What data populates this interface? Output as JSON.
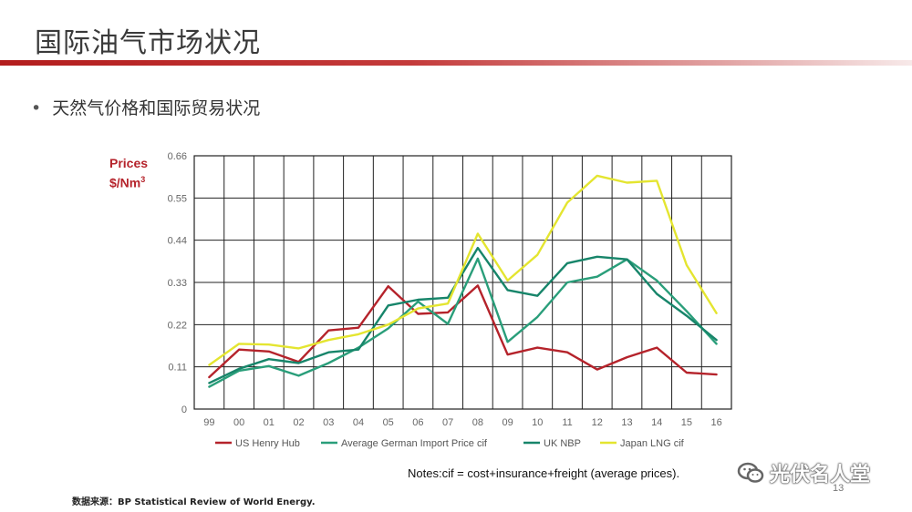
{
  "slide": {
    "title": "国际油气市场状况",
    "bullet": "天然气价格和国际贸易状况",
    "notes": "Notes:cif = cost+insurance+freight (average prices).",
    "source": "数据来源：BP Statistical Review of World Energy.",
    "page_number": "13",
    "watermark": "光伏名人堂",
    "accent_color": "#b5232b"
  },
  "chart_data": {
    "type": "line",
    "ylabel_line1": "Prices",
    "ylabel_line2": "$/Nm",
    "ylabel_sup": "3",
    "ylim": [
      0,
      0.66
    ],
    "y_ticks": [
      "0",
      "0.11",
      "0.22",
      "0.33",
      "0.44",
      "0.55",
      "0.66"
    ],
    "categories": [
      "99",
      "00",
      "01",
      "02",
      "03",
      "04",
      "05",
      "06",
      "07",
      "08",
      "09",
      "10",
      "11",
      "12",
      "13",
      "14",
      "15",
      "16"
    ],
    "grid": true,
    "legend_position": "bottom",
    "series": [
      {
        "name": "US Henry Hub",
        "color": "#b5232b",
        "values": [
          0.083,
          0.155,
          0.15,
          0.123,
          0.205,
          0.212,
          0.32,
          0.248,
          0.252,
          0.322,
          0.142,
          0.16,
          0.148,
          0.103,
          0.135,
          0.16,
          0.095,
          0.09
        ]
      },
      {
        "name": "Average German Import Price cif",
        "color": "#2a9e7a",
        "values": [
          0.058,
          0.1,
          0.112,
          0.087,
          0.12,
          0.16,
          0.21,
          0.28,
          0.222,
          0.392,
          0.175,
          0.24,
          0.33,
          0.345,
          0.39,
          0.335,
          0.255,
          0.17
        ]
      },
      {
        "name": "UK NBP",
        "color": "#17856a",
        "values": [
          0.068,
          0.105,
          0.13,
          0.12,
          0.148,
          0.155,
          0.27,
          0.285,
          0.29,
          0.42,
          0.31,
          0.295,
          0.38,
          0.397,
          0.39,
          0.3,
          0.243,
          0.18
        ]
      },
      {
        "name": "Japan LNG cif",
        "color": "#e4e530",
        "values": [
          0.115,
          0.17,
          0.168,
          0.158,
          0.18,
          0.195,
          0.22,
          0.262,
          0.275,
          0.457,
          0.335,
          0.402,
          0.538,
          0.608,
          0.59,
          0.595,
          0.375,
          0.25
        ]
      }
    ]
  }
}
